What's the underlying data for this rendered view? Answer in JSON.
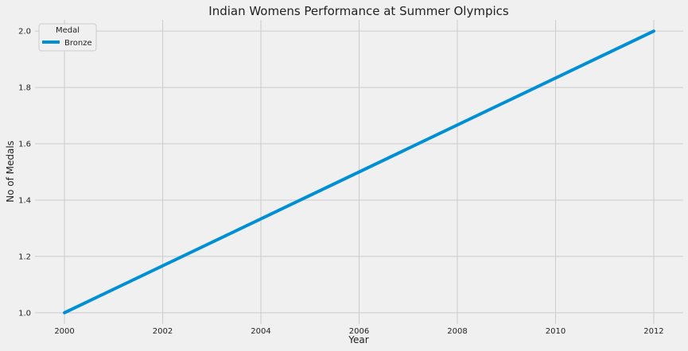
{
  "chart_data": {
    "type": "line",
    "title": "Indian Womens Performance at Summer Olympics",
    "xlabel": "Year",
    "ylabel": "No of Medals",
    "x": [
      2000,
      2012
    ],
    "xlim": [
      1999.4,
      2012.6
    ],
    "ylim": [
      0.96,
      2.04
    ],
    "xticks": [
      2000,
      2002,
      2004,
      2006,
      2008,
      2010,
      2012
    ],
    "yticks": [
      1.0,
      1.2,
      1.4,
      1.6,
      1.8,
      2.0
    ],
    "ytick_labels": [
      "1.0",
      "1.2",
      "1.4",
      "1.6",
      "1.8",
      "2.0"
    ],
    "grid": true,
    "legend": {
      "title": "Medal",
      "placement": "top-left"
    },
    "series": [
      {
        "name": "Bronze",
        "values": [
          1.0,
          2.0
        ],
        "color": "#008fd5"
      }
    ],
    "background": "#f0f0f0",
    "grid_color": "#cbcbcb"
  }
}
